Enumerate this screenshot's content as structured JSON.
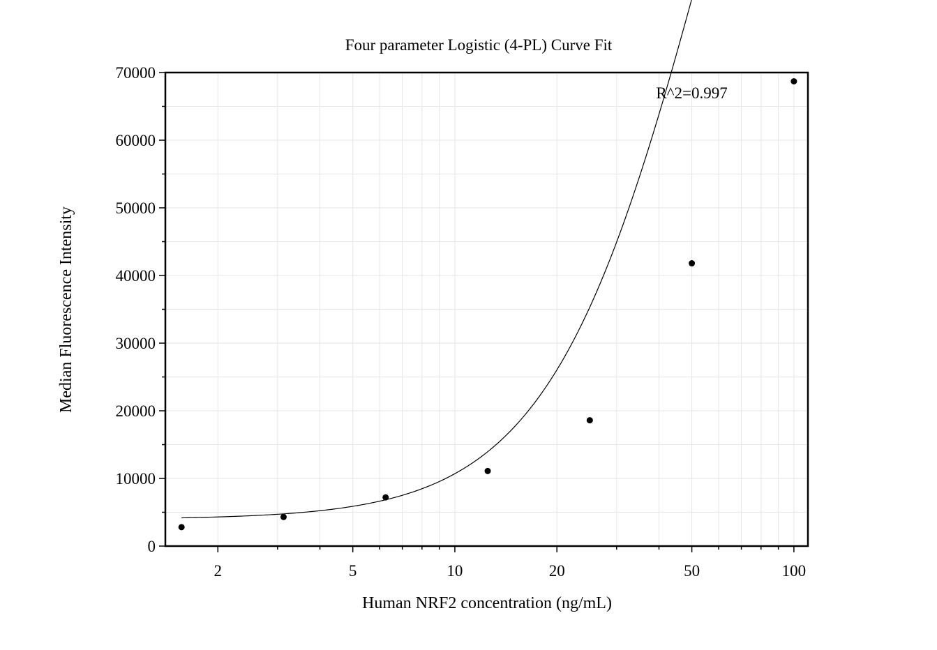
{
  "chart_data": {
    "type": "scatter",
    "title": "Four parameter Logistic (4-PL) Curve Fit",
    "xlabel": "Human NRF2 concentration (ng/mL)",
    "ylabel": "Median Fluorescence Intensity",
    "x_scale": "log",
    "xlim": [
      1.4,
      110
    ],
    "ylim": [
      0,
      70000
    ],
    "grid": true,
    "x_ticks": [
      {
        "value": 2,
        "label": "2"
      },
      {
        "value": 5,
        "label": "5"
      },
      {
        "value": 10,
        "label": "10"
      },
      {
        "value": 20,
        "label": "20"
      },
      {
        "value": 50,
        "label": "50"
      },
      {
        "value": 100,
        "label": "100"
      }
    ],
    "y_ticks": [
      {
        "value": 0,
        "label": "0"
      },
      {
        "value": 10000,
        "label": "10000"
      },
      {
        "value": 20000,
        "label": "20000"
      },
      {
        "value": 30000,
        "label": "30000"
      },
      {
        "value": 40000,
        "label": "40000"
      },
      {
        "value": 50000,
        "label": "50000"
      },
      {
        "value": 60000,
        "label": "60000"
      },
      {
        "value": 70000,
        "label": "70000"
      }
    ],
    "series": [
      {
        "type": "scatter",
        "x": [
          1.5625,
          3.125,
          6.25,
          12.5,
          25,
          50,
          100
        ],
        "y": [
          2800,
          4300,
          7200,
          11100,
          18600,
          41800,
          68700
        ]
      },
      {
        "type": "line",
        "fit": "4PL",
        "params": {
          "A": 3950,
          "B": 1.85,
          "C": 56.7,
          "D": 178000
        },
        "x_range": [
          1.5625,
          100
        ]
      }
    ],
    "annotations": [
      {
        "text": "R^2=0.997",
        "x": 50,
        "y": 67000
      }
    ]
  }
}
